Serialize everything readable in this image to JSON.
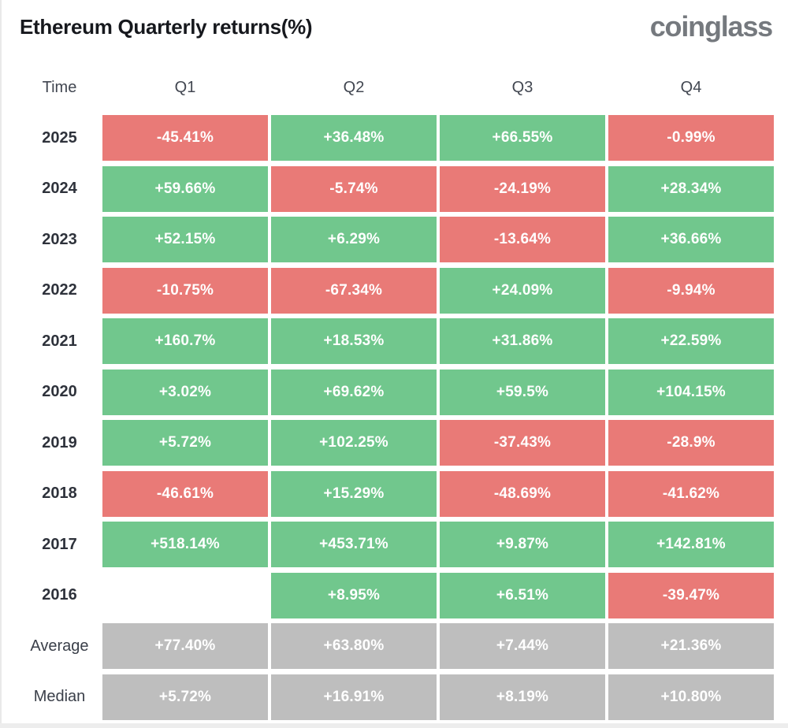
{
  "header": {
    "title": "Ethereum Quarterly returns(%)",
    "logo": "coinglass"
  },
  "colors": {
    "positive": "#71c78d",
    "negative": "#e97a77",
    "neutral": "#bebebe"
  },
  "chart_data": {
    "type": "heatmap",
    "title": "Ethereum Quarterly returns(%)",
    "columns": [
      "Time",
      "Q1",
      "Q2",
      "Q3",
      "Q4"
    ],
    "rows": [
      {
        "label": "2025",
        "kind": "year",
        "values": [
          "-45.41%",
          "+36.48%",
          "+66.55%",
          "-0.99%"
        ]
      },
      {
        "label": "2024",
        "kind": "year",
        "values": [
          "+59.66%",
          "-5.74%",
          "-24.19%",
          "+28.34%"
        ]
      },
      {
        "label": "2023",
        "kind": "year",
        "values": [
          "+52.15%",
          "+6.29%",
          "-13.64%",
          "+36.66%"
        ]
      },
      {
        "label": "2022",
        "kind": "year",
        "values": [
          "-10.75%",
          "-67.34%",
          "+24.09%",
          "-9.94%"
        ]
      },
      {
        "label": "2021",
        "kind": "year",
        "values": [
          "+160.7%",
          "+18.53%",
          "+31.86%",
          "+22.59%"
        ]
      },
      {
        "label": "2020",
        "kind": "year",
        "values": [
          "+3.02%",
          "+69.62%",
          "+59.5%",
          "+104.15%"
        ]
      },
      {
        "label": "2019",
        "kind": "year",
        "values": [
          "+5.72%",
          "+102.25%",
          "-37.43%",
          "-28.9%"
        ]
      },
      {
        "label": "2018",
        "kind": "year",
        "values": [
          "-46.61%",
          "+15.29%",
          "-48.69%",
          "-41.62%"
        ]
      },
      {
        "label": "2017",
        "kind": "year",
        "values": [
          "+518.14%",
          "+453.71%",
          "+9.87%",
          "+142.81%"
        ]
      },
      {
        "label": "2016",
        "kind": "year",
        "values": [
          "",
          "+8.95%",
          "+6.51%",
          "-39.47%"
        ]
      },
      {
        "label": "Average",
        "kind": "stat",
        "values": [
          "+77.40%",
          "+63.80%",
          "+7.44%",
          "+21.36%"
        ]
      },
      {
        "label": "Median",
        "kind": "stat",
        "values": [
          "+5.72%",
          "+16.91%",
          "+8.19%",
          "+10.80%"
        ]
      }
    ]
  }
}
